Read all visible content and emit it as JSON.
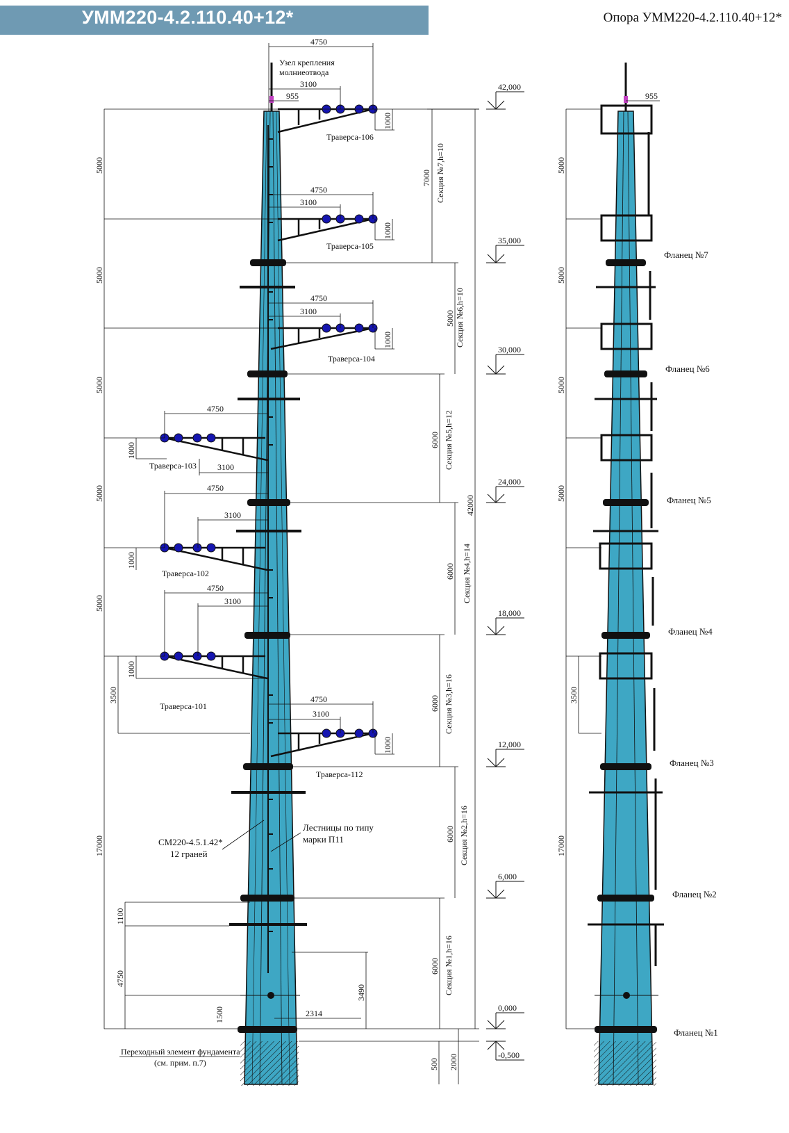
{
  "header": {
    "title": "УММ220-4.2.110.40+12*",
    "caption": "Опора УММ220-4.2.110.40+12*"
  },
  "colors": {
    "pole": "#3ea7c4",
    "header_bg": "#6f9ab3",
    "insulator": "#1515b0",
    "steel": "#111111"
  },
  "top_node": {
    "label_line1": "Узел крепления",
    "label_line2": "молниеотвода",
    "dim_4750": "4750",
    "dim_3100": "3100",
    "dim_955": "955"
  },
  "elevations": [
    "42,000",
    "35,000",
    "30,000",
    "24,000",
    "18,000",
    "12,000",
    "6,000",
    "0,000",
    "-0,500"
  ],
  "crossarms": {
    "t106": {
      "label": "Траверса-106",
      "d4750": "4750",
      "d3100": "3100",
      "d1000": "1000"
    },
    "t105": {
      "label": "Траверса-105",
      "d4750": "4750",
      "d3100": "3100",
      "d1000": "1000"
    },
    "t104": {
      "label": "Траверса-104",
      "d4750": "4750",
      "d3100": "3100",
      "d1000": "1000"
    },
    "t103": {
      "label": "Траверса-103",
      "d4750": "4750",
      "d3100": "3100",
      "d1000": "1000"
    },
    "t102": {
      "label": "Траверса-102",
      "d4750": "4750",
      "d3100": "3100",
      "d1000": "1000"
    },
    "t101": {
      "label": "Траверса-101",
      "d4750": "4750",
      "d3100": "3100",
      "d1000": "1000"
    },
    "t112": {
      "label": "Траверса-112",
      "d4750": "4750",
      "d3100": "3100",
      "d1000": "1000"
    }
  },
  "sections": {
    "s7": {
      "label": "Секция №7,h=10",
      "dim": "7000"
    },
    "s6": {
      "label": "Секция №6,h=10",
      "dim": "5000"
    },
    "s5": {
      "label": "Секция №5,h=12",
      "dim": "6000"
    },
    "s4": {
      "label": "Секция №4,h=14",
      "dim": "6000"
    },
    "s3": {
      "label": "Секция №3,h=16",
      "dim": "6000"
    },
    "s2": {
      "label": "Секция №2,h=16",
      "dim": "6000"
    },
    "s1": {
      "label": "Секция №1,h=16",
      "dim": "6000"
    }
  },
  "overall": {
    "height": "42000",
    "base": "2000",
    "base_small": "500"
  },
  "left_dims": [
    "5000",
    "5000",
    "5000",
    "5000",
    "5000",
    "17000"
  ],
  "inner_left_dims": {
    "d3500": "3500",
    "d1100": "1100",
    "d4750": "4750",
    "d1500": "1500"
  },
  "lower_dims": {
    "d2314": "2314",
    "d3490": "3490"
  },
  "notes": {
    "shaft_line1": "СМ220-4.5.1.42*",
    "shaft_line2": "12 граней",
    "ladder_line1": "Лестницы по типу",
    "ladder_line2": "марки П11",
    "transition_line1": "Переходный элемент фундамента",
    "transition_line2": "(см. прим. п.7)"
  },
  "flanges": [
    "Фланец №7",
    "Фланец №6",
    "Фланец №5",
    "Фланец №4",
    "Фланец №3",
    "Фланец №2",
    "Фланец №1"
  ],
  "side_view": {
    "top_dim": "955",
    "left_dims": [
      "5000",
      "5000",
      "5000",
      "5000",
      "3500",
      "17000"
    ]
  }
}
